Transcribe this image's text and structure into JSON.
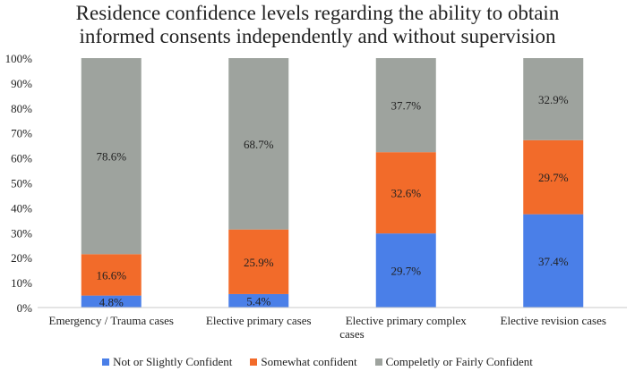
{
  "chart_data": {
    "type": "bar",
    "stacked": true,
    "title_lines": [
      "Residence confidence levels regarding the ability to obtain",
      "informed consents independently and without supervision"
    ],
    "categories": [
      [
        "Emergency / Trauma cases"
      ],
      [
        "Elective primary  cases"
      ],
      [
        "Elective primary complex",
        "cases"
      ],
      [
        "Elective revision cases"
      ]
    ],
    "series": [
      {
        "name": "Not or Slightly Confident",
        "color": "#4A7FE8",
        "values": [
          4.8,
          5.4,
          29.7,
          37.4
        ]
      },
      {
        "name": "Somewhat confident",
        "color": "#F26B2A",
        "values": [
          16.6,
          25.9,
          32.6,
          29.7
        ]
      },
      {
        "name": "Compeletly or Fairly Confident",
        "color": "#9EA39E",
        "values": [
          78.6,
          68.7,
          37.7,
          32.9
        ]
      }
    ],
    "data_labels": [
      [
        "4.8%",
        "5.4%",
        "29.7%",
        "37.4%"
      ],
      [
        "16.6%",
        "25.9%",
        "32.6%",
        "29.7%"
      ],
      [
        "78.6%",
        "68.7%",
        "37.7%",
        "32.9%"
      ]
    ],
    "yticks": [
      "0%",
      "10%",
      "20%",
      "30%",
      "40%",
      "50%",
      "60%",
      "70%",
      "80%",
      "90%",
      "100%"
    ],
    "ylim": [
      0,
      100
    ],
    "grid": false,
    "legend_position": "bottom"
  }
}
